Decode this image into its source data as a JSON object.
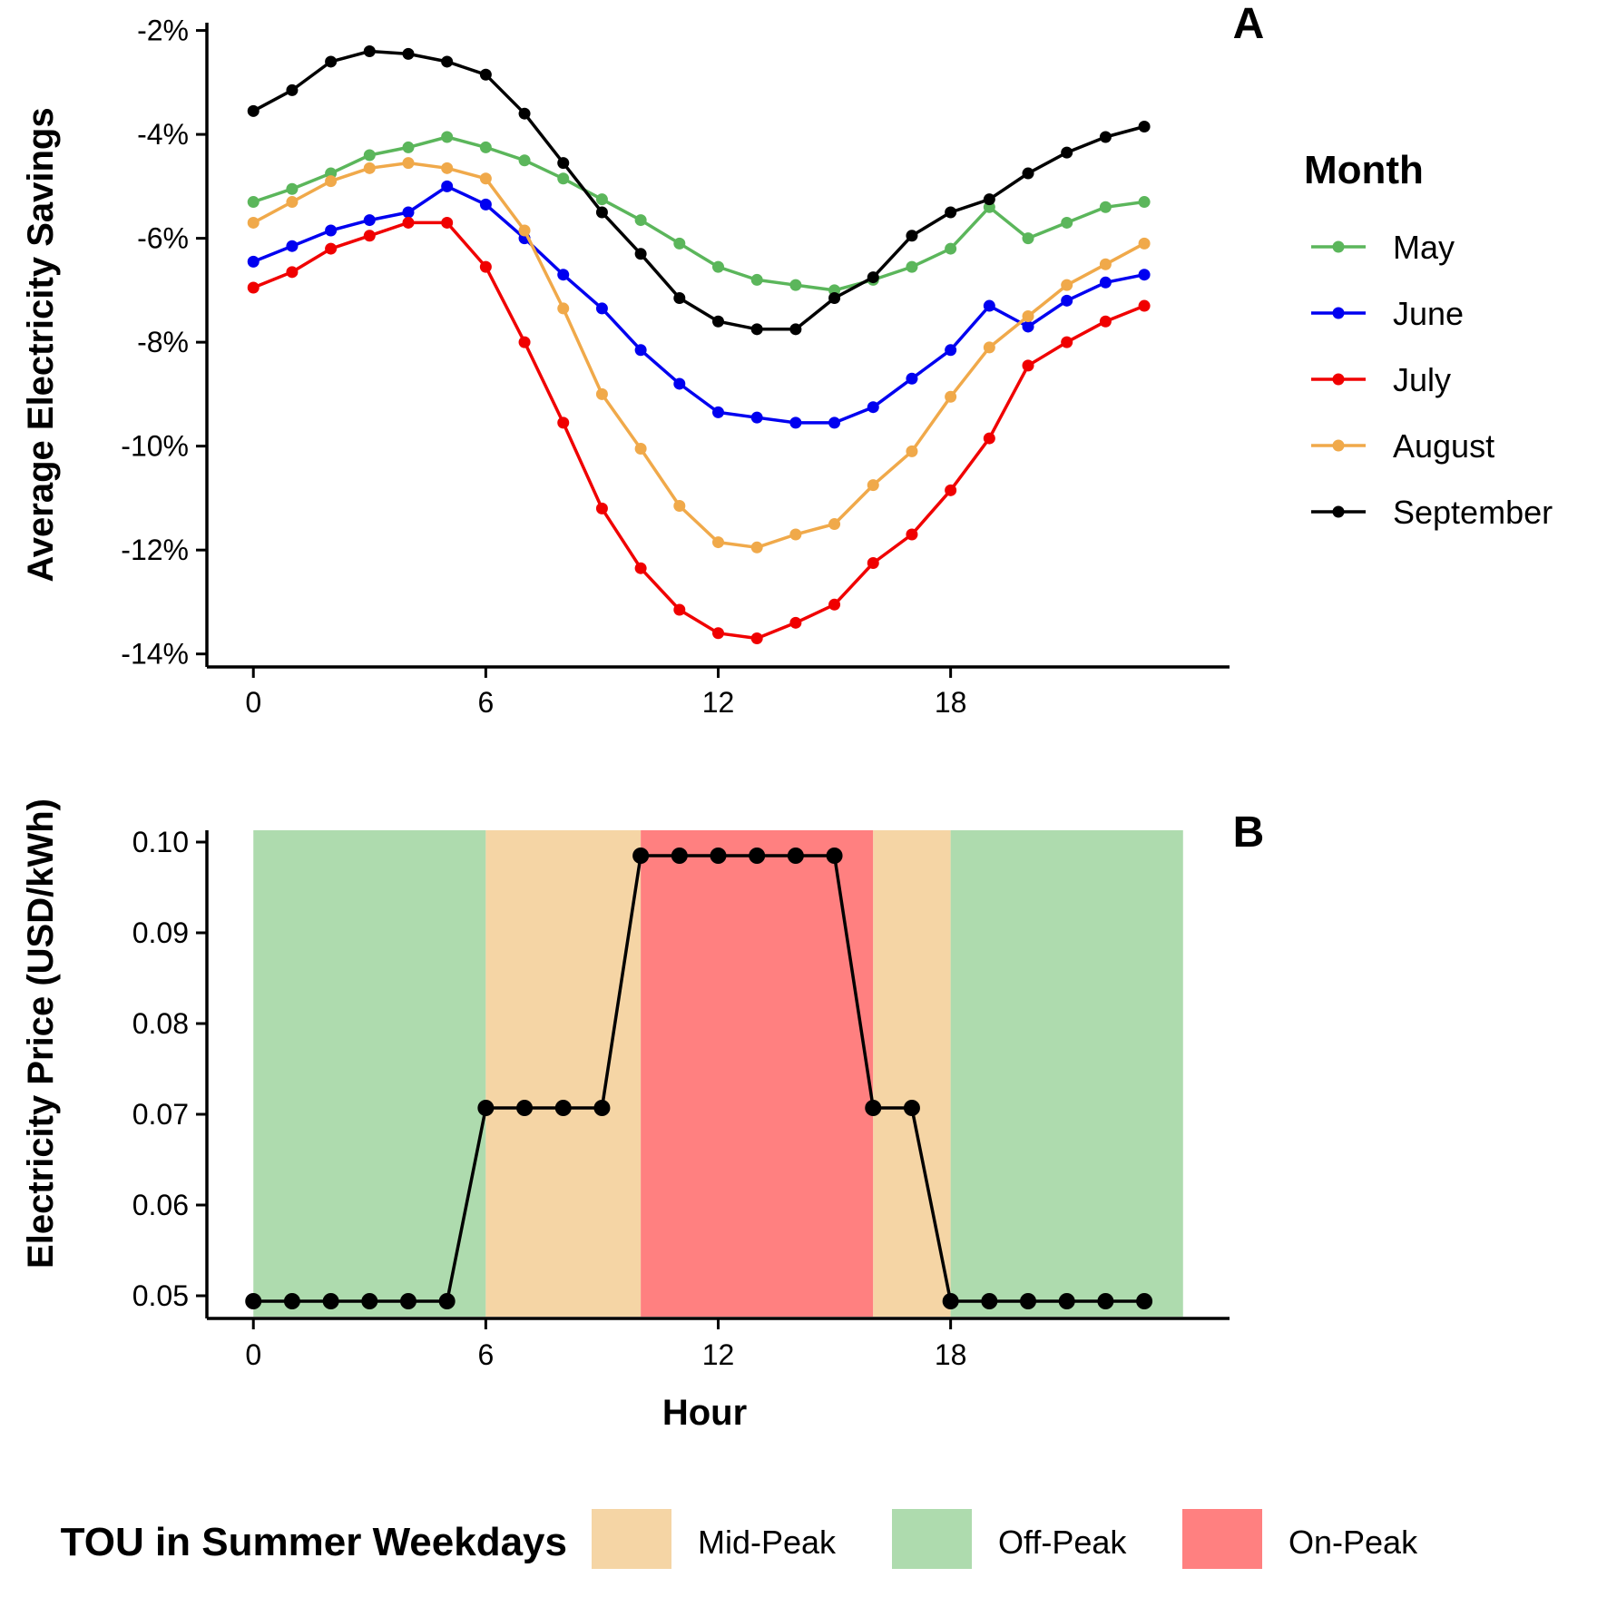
{
  "chart_data": [
    {
      "panel": "A",
      "type": "line",
      "ylabel": "Average Electricity Savings",
      "xlabel": "",
      "x": [
        0,
        1,
        2,
        3,
        4,
        5,
        6,
        7,
        8,
        9,
        10,
        11,
        12,
        13,
        14,
        15,
        16,
        17,
        18,
        19,
        20,
        21,
        22,
        23
      ],
      "xticks": [
        0,
        6,
        12,
        18
      ],
      "xlim": [
        -1.2,
        25.2
      ],
      "ylim": [
        -14.25,
        -1.85
      ],
      "yticks": [
        -2,
        -4,
        -6,
        -8,
        -10,
        -12,
        -14
      ],
      "ytick_labels": [
        "-2%",
        "-4%",
        "-6%",
        "-8%",
        "-10%",
        "-12%",
        "-14%"
      ],
      "legend_title": "Month",
      "legend_position": "right",
      "series": [
        {
          "name": "May",
          "color": "#5BB65B",
          "values": [
            -5.3,
            -5.05,
            -4.75,
            -4.4,
            -4.25,
            -4.05,
            -4.25,
            -4.5,
            -4.85,
            -5.25,
            -5.65,
            -6.1,
            -6.55,
            -6.8,
            -6.9,
            -7.0,
            -6.8,
            -6.55,
            -6.2,
            -5.4,
            -6.0,
            -5.7,
            -5.4,
            -5.3
          ]
        },
        {
          "name": "June",
          "color": "#0000F0",
          "values": [
            -6.45,
            -6.15,
            -5.85,
            -5.65,
            -5.5,
            -5.0,
            -5.35,
            -6.0,
            -6.7,
            -7.35,
            -8.15,
            -8.8,
            -9.35,
            -9.45,
            -9.55,
            -9.55,
            -9.25,
            -8.7,
            -8.15,
            -7.3,
            -7.7,
            -7.2,
            -6.85,
            -6.7
          ]
        },
        {
          "name": "July",
          "color": "#F00000",
          "values": [
            -6.95,
            -6.65,
            -6.2,
            -5.95,
            -5.7,
            -5.7,
            -6.55,
            -8.0,
            -9.55,
            -11.2,
            -12.35,
            -13.15,
            -13.6,
            -13.7,
            -13.4,
            -13.05,
            -12.25,
            -11.7,
            -10.85,
            -9.85,
            -8.45,
            -8.0,
            -7.6,
            -7.3
          ]
        },
        {
          "name": "August",
          "color": "#F0A94A",
          "values": [
            -5.7,
            -5.3,
            -4.9,
            -4.65,
            -4.55,
            -4.65,
            -4.85,
            -5.85,
            -7.35,
            -9.0,
            -10.05,
            -11.15,
            -11.85,
            -11.95,
            -11.7,
            -11.5,
            -10.75,
            -10.1,
            -9.05,
            -8.1,
            -7.5,
            -6.9,
            -6.5,
            -6.1
          ]
        },
        {
          "name": "September",
          "color": "#000000",
          "values": [
            -3.55,
            -3.15,
            -2.6,
            -2.4,
            -2.45,
            -2.6,
            -2.85,
            -3.6,
            -4.55,
            -5.5,
            -6.3,
            -7.15,
            -7.6,
            -7.75,
            -7.75,
            -7.15,
            -6.75,
            -5.95,
            -5.5,
            -5.25,
            -4.75,
            -4.35,
            -4.05,
            -3.85
          ]
        }
      ]
    },
    {
      "panel": "B",
      "type": "line",
      "ylabel": "Electricity Price (USD/kWh)",
      "xlabel": "Hour",
      "x": [
        0,
        1,
        2,
        3,
        4,
        5,
        6,
        7,
        8,
        9,
        10,
        11,
        12,
        13,
        14,
        15,
        16,
        17,
        18,
        19,
        20,
        21,
        22,
        23
      ],
      "xticks": [
        0,
        6,
        12,
        18
      ],
      "xlim": [
        -1.2,
        25.2
      ],
      "ylim": [
        0.0475,
        0.1013
      ],
      "yticks": [
        0.05,
        0.06,
        0.07,
        0.08,
        0.09,
        0.1
      ],
      "ytick_labels": [
        "0.05",
        "0.06",
        "0.07",
        "0.08",
        "0.09",
        "0.10"
      ],
      "series": [
        {
          "name": "",
          "color": "#000000",
          "values": [
            0.0494,
            0.0494,
            0.0494,
            0.0494,
            0.0494,
            0.0494,
            0.0707,
            0.0707,
            0.0707,
            0.0707,
            0.0985,
            0.0985,
            0.0985,
            0.0985,
            0.0985,
            0.0985,
            0.0707,
            0.0707,
            0.0494,
            0.0494,
            0.0494,
            0.0494,
            0.0494,
            0.0494
          ]
        }
      ],
      "bands": [
        {
          "start": 0,
          "end": 6,
          "period": "Off-Peak"
        },
        {
          "start": 6,
          "end": 10,
          "period": "Mid-Peak"
        },
        {
          "start": 10,
          "end": 16,
          "period": "On-Peak"
        },
        {
          "start": 16,
          "end": 18,
          "period": "Mid-Peak"
        },
        {
          "start": 18,
          "end": 24,
          "period": "Off-Peak"
        }
      ],
      "legend_title": "TOU in Summer Weekdays",
      "legend_position": "bottom",
      "legend": [
        {
          "label": "Mid-Peak",
          "color": "#F5D5A5"
        },
        {
          "label": "Off-Peak",
          "color": "#AEDBAE"
        },
        {
          "label": "On-Peak",
          "color": "#FF8080"
        }
      ]
    }
  ]
}
